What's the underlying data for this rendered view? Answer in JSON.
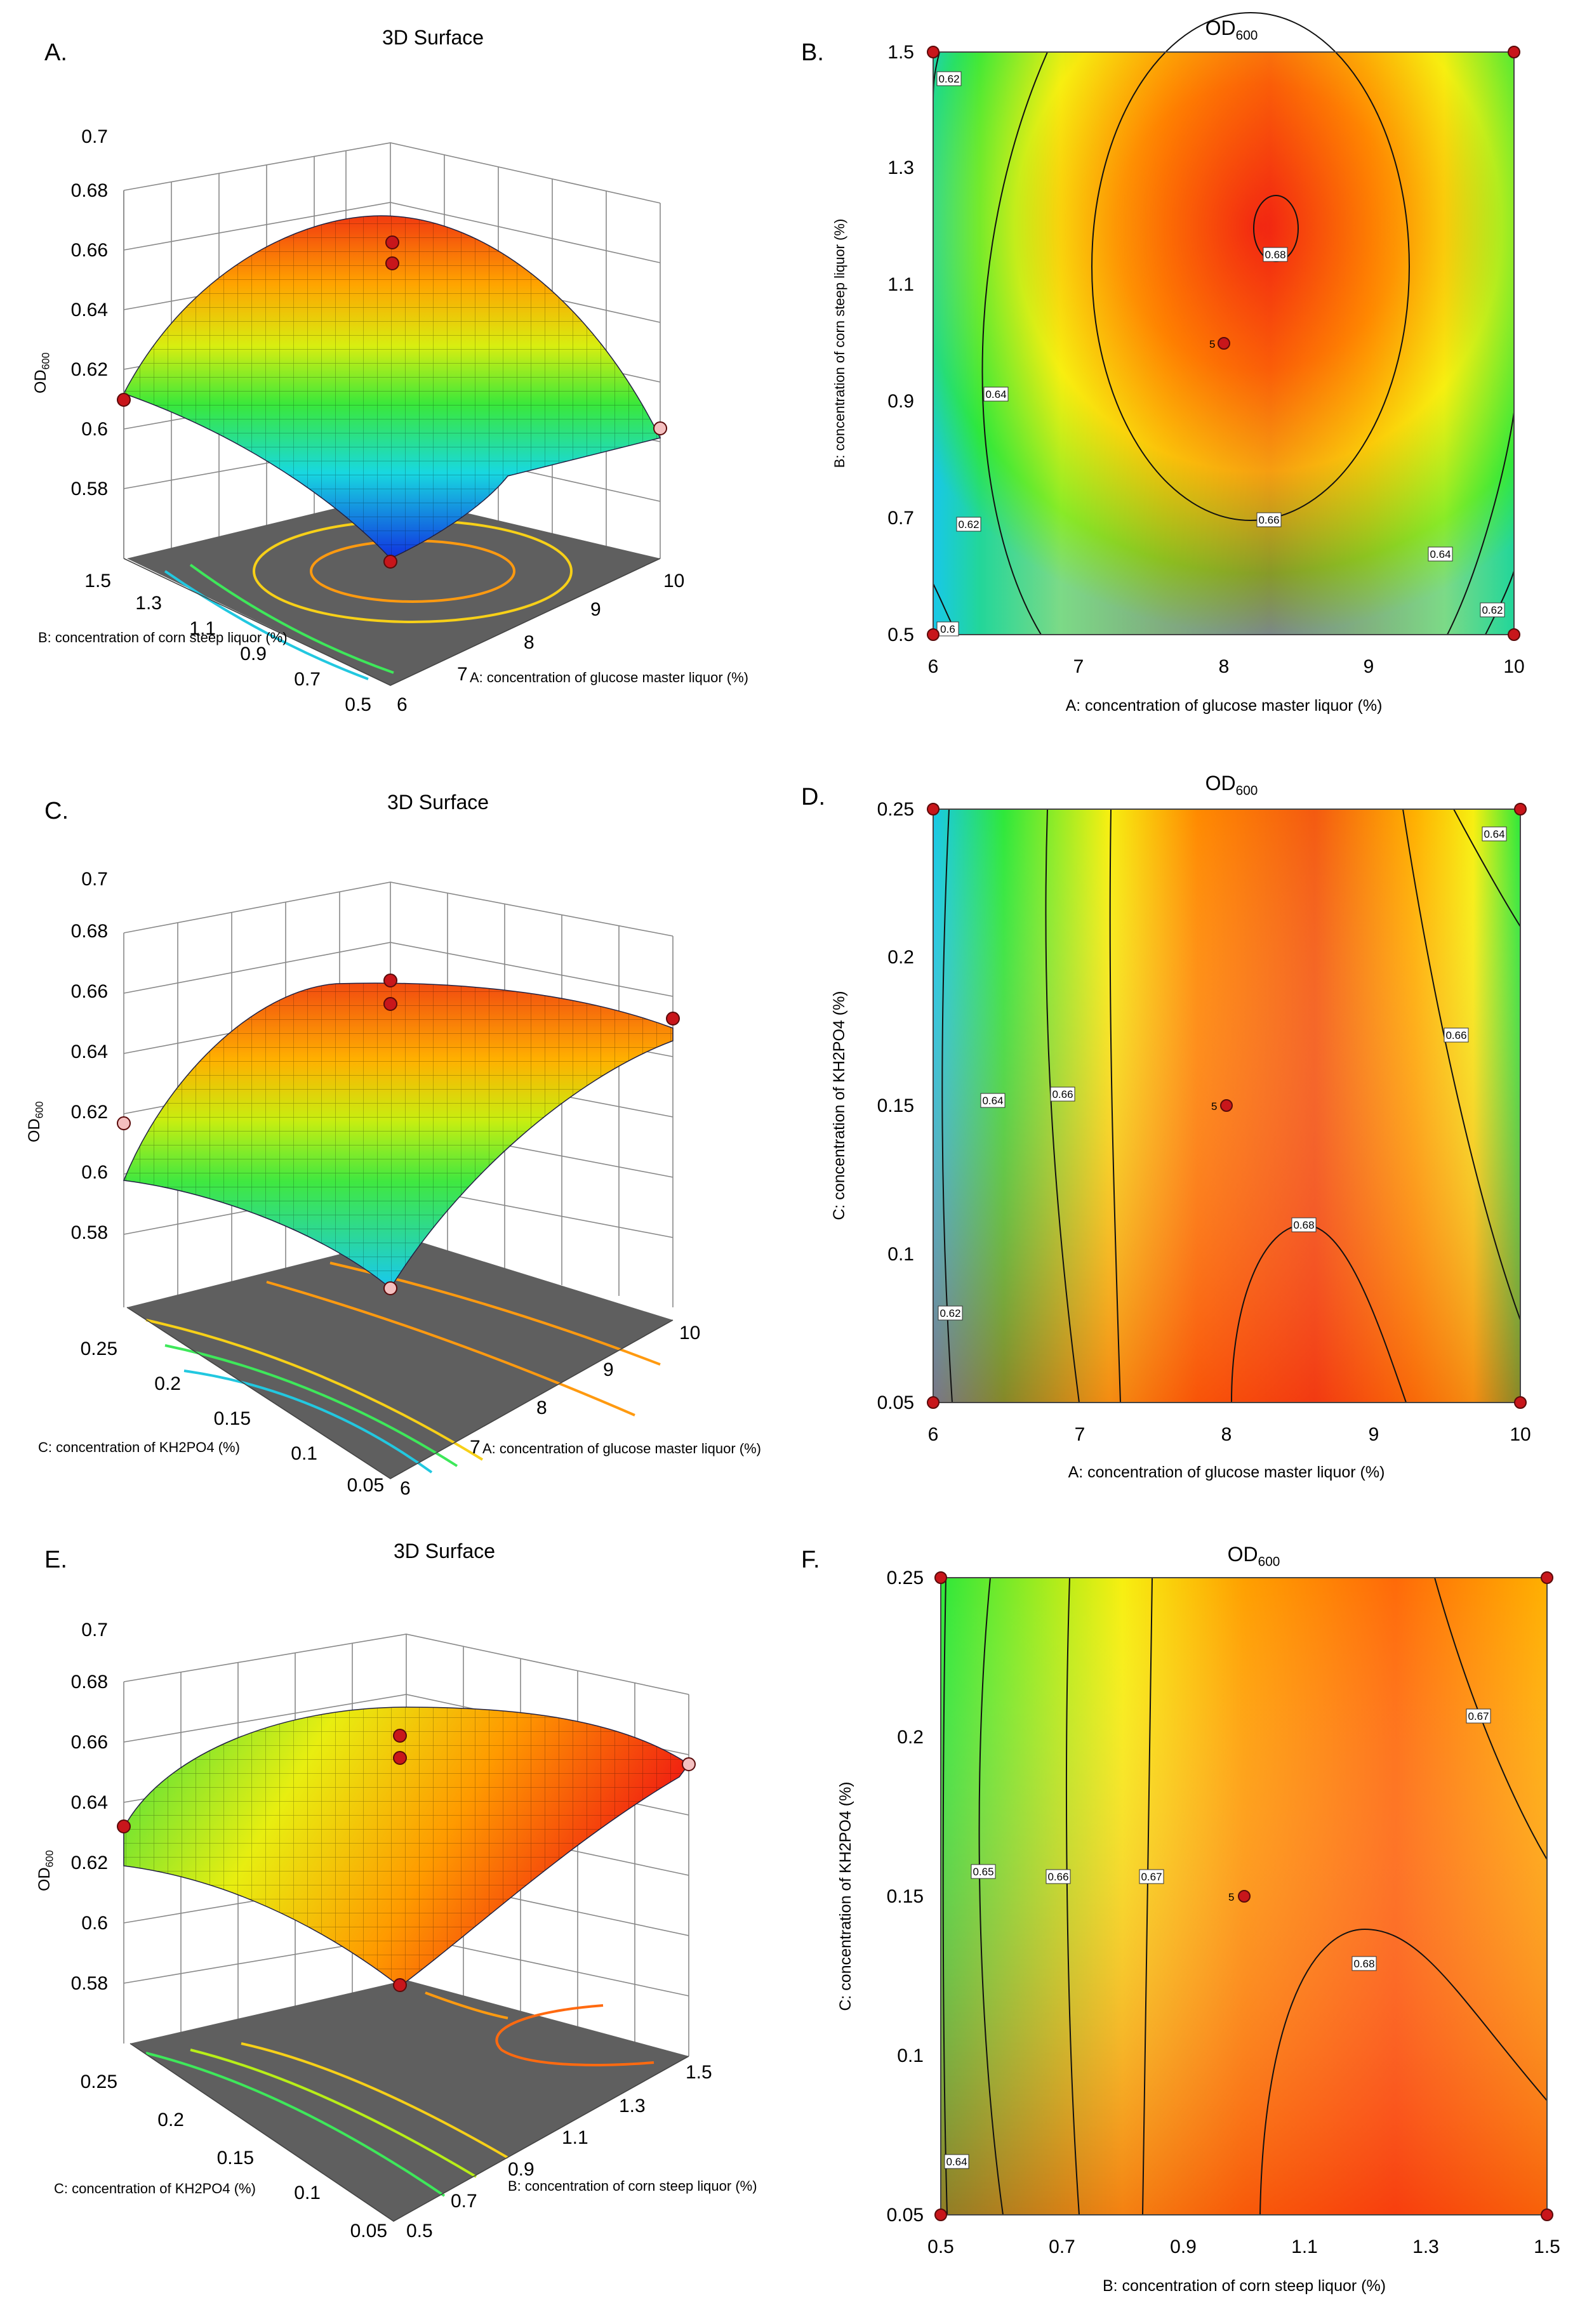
{
  "figure": {
    "panels": [
      "A.",
      "B.",
      "C.",
      "D.",
      "E.",
      "F."
    ]
  },
  "colors": {
    "low": "#1d4fd8",
    "cyan": "#18c8e8",
    "green": "#2ee83a",
    "yellow": "#f7ef10",
    "orange": "#ff8a00",
    "high": "#f01212",
    "floor": "#5f5f5f",
    "point": "#c8161b",
    "point_light": "#f4c0c0"
  },
  "surf3d": {
    "title": "3D Surface",
    "z_label": "OD600",
    "z_ticks": [
      "0.58",
      "0.6",
      "0.62",
      "0.64",
      "0.66",
      "0.68",
      "0.7"
    ]
  },
  "contour": {
    "title": "OD600"
  },
  "chart_data": [
    {
      "id": "A",
      "type": "surface3d",
      "title": "3D Surface",
      "xlabel": "A: concentration of glucose master liquor  (%)",
      "ylabel": "B: concentration of corn steep liquor (%)",
      "zlabel": "OD600",
      "x_ticks": [
        "6",
        "7",
        "8",
        "9",
        "10"
      ],
      "y_ticks": [
        "0.5",
        "0.7",
        "0.9",
        "1.1",
        "1.3",
        "1.5"
      ],
      "z_ticks": [
        "0.58",
        "0.6",
        "0.62",
        "0.64",
        "0.66",
        "0.68",
        "0.7"
      ],
      "zlim": [
        0.58,
        0.7
      ]
    },
    {
      "id": "B",
      "type": "contour",
      "title": "OD600",
      "xlabel": "A: concentration of glucose master liquor  (%)",
      "ylabel": "B: concentration of corn steep liquor (%)",
      "x_ticks": [
        "6",
        "7",
        "8",
        "9",
        "10"
      ],
      "y_ticks": [
        "0.5",
        "0.7",
        "0.9",
        "1.1",
        "1.3",
        "1.5"
      ],
      "xlim": [
        6,
        10
      ],
      "ylim": [
        0.5,
        1.5
      ],
      "contour_labels": [
        "0.62",
        "0.64",
        "0.62",
        "0.6",
        "0.68",
        "0.66",
        "0.64",
        "0.62"
      ],
      "center_point": {
        "x": 8,
        "y": 1.0,
        "label": "5"
      },
      "design_points": [
        [
          6,
          1.5
        ],
        [
          10,
          1.5
        ],
        [
          6,
          0.5
        ],
        [
          10,
          0.5
        ]
      ]
    },
    {
      "id": "C",
      "type": "surface3d",
      "title": "3D Surface",
      "xlabel": "A: concentration of glucose master liquor  (%)",
      "ylabel": "C: concentration of KH2PO4 (%)",
      "zlabel": "OD600",
      "x_ticks": [
        "6",
        "7",
        "8",
        "9",
        "10"
      ],
      "y_ticks": [
        "0.05",
        "0.1",
        "0.15",
        "0.2",
        "0.25"
      ],
      "z_ticks": [
        "0.58",
        "0.6",
        "0.62",
        "0.64",
        "0.66",
        "0.68",
        "0.7"
      ],
      "zlim": [
        0.58,
        0.7
      ]
    },
    {
      "id": "D",
      "type": "contour",
      "title": "OD600",
      "xlabel": "A: concentration of glucose master liquor  (%)",
      "ylabel": "C: concentration of KH2PO4 (%)",
      "x_ticks": [
        "6",
        "7",
        "8",
        "9",
        "10"
      ],
      "y_ticks": [
        "0.05",
        "0.1",
        "0.15",
        "0.2",
        "0.25"
      ],
      "xlim": [
        6,
        10
      ],
      "ylim": [
        0.05,
        0.25
      ],
      "contour_labels": [
        "0.64",
        "0.64",
        "0.66",
        "0.66",
        "0.68",
        "0.62"
      ],
      "center_point": {
        "x": 8,
        "y": 0.15,
        "label": "5"
      },
      "design_points": [
        [
          6,
          0.25
        ],
        [
          10,
          0.25
        ],
        [
          6,
          0.05
        ],
        [
          10,
          0.05
        ]
      ]
    },
    {
      "id": "E",
      "type": "surface3d",
      "title": "3D Surface",
      "xlabel": "B: concentration of corn steep liquor (%)",
      "ylabel": "C: concentration of KH2PO4 (%)",
      "zlabel": "OD600",
      "x_ticks": [
        "0.5",
        "0.7",
        "0.9",
        "1.1",
        "1.3",
        "1.5"
      ],
      "y_ticks": [
        "0.05",
        "0.1",
        "0.15",
        "0.2",
        "0.25"
      ],
      "z_ticks": [
        "0.58",
        "0.6",
        "0.62",
        "0.64",
        "0.66",
        "0.68",
        "0.7"
      ],
      "zlim": [
        0.58,
        0.7
      ]
    },
    {
      "id": "F",
      "type": "contour",
      "title": "OD600",
      "xlabel": "B: concentration of corn steep liquor (%)",
      "ylabel": "C: concentration of KH2PO4 (%)",
      "x_ticks": [
        "0.5",
        "0.7",
        "0.9",
        "1.1",
        "1.3",
        "1.5"
      ],
      "y_ticks": [
        "0.05",
        "0.1",
        "0.15",
        "0.2",
        "0.25"
      ],
      "xlim": [
        0.5,
        1.5
      ],
      "ylim": [
        0.05,
        0.25
      ],
      "contour_labels": [
        "0.65",
        "0.66",
        "0.67",
        "0.67",
        "0.68",
        "0.64"
      ],
      "center_point": {
        "x": 1.0,
        "y": 0.15,
        "label": "5"
      },
      "design_points": [
        [
          0.5,
          0.25
        ],
        [
          1.5,
          0.25
        ],
        [
          0.5,
          0.05
        ],
        [
          1.5,
          0.05
        ]
      ]
    }
  ]
}
